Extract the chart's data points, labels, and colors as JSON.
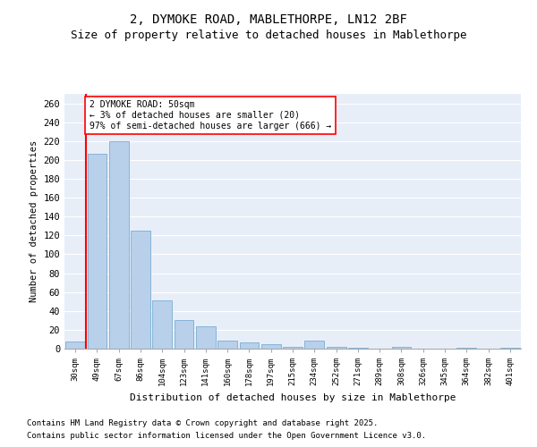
{
  "title1": "2, DYMOKE ROAD, MABLETHORPE, LN12 2BF",
  "title2": "Size of property relative to detached houses in Mablethorpe",
  "xlabel": "Distribution of detached houses by size in Mablethorpe",
  "ylabel": "Number of detached properties",
  "categories": [
    "30sqm",
    "49sqm",
    "67sqm",
    "86sqm",
    "104sqm",
    "123sqm",
    "141sqm",
    "160sqm",
    "178sqm",
    "197sqm",
    "215sqm",
    "234sqm",
    "252sqm",
    "271sqm",
    "289sqm",
    "308sqm",
    "326sqm",
    "345sqm",
    "364sqm",
    "382sqm",
    "401sqm"
  ],
  "values": [
    8,
    207,
    220,
    125,
    51,
    30,
    24,
    9,
    7,
    5,
    2,
    9,
    2,
    1,
    0,
    2,
    0,
    0,
    1,
    0,
    1
  ],
  "bar_color": "#b8d0ea",
  "bar_edge_color": "#7aadd4",
  "red_line_x": 0.5,
  "annotation_title": "2 DYMOKE ROAD: 50sqm",
  "annotation_line1": "← 3% of detached houses are smaller (20)",
  "annotation_line2": "97% of semi-detached houses are larger (666) →",
  "ylim": [
    0,
    270
  ],
  "yticks": [
    0,
    20,
    40,
    60,
    80,
    100,
    120,
    140,
    160,
    180,
    200,
    220,
    240,
    260
  ],
  "bg_color": "#e8eef8",
  "footer1": "Contains HM Land Registry data © Crown copyright and database right 2025.",
  "footer2": "Contains public sector information licensed under the Open Government Licence v3.0.",
  "title_fontsize": 10,
  "subtitle_fontsize": 9,
  "footer_fontsize": 6.5
}
